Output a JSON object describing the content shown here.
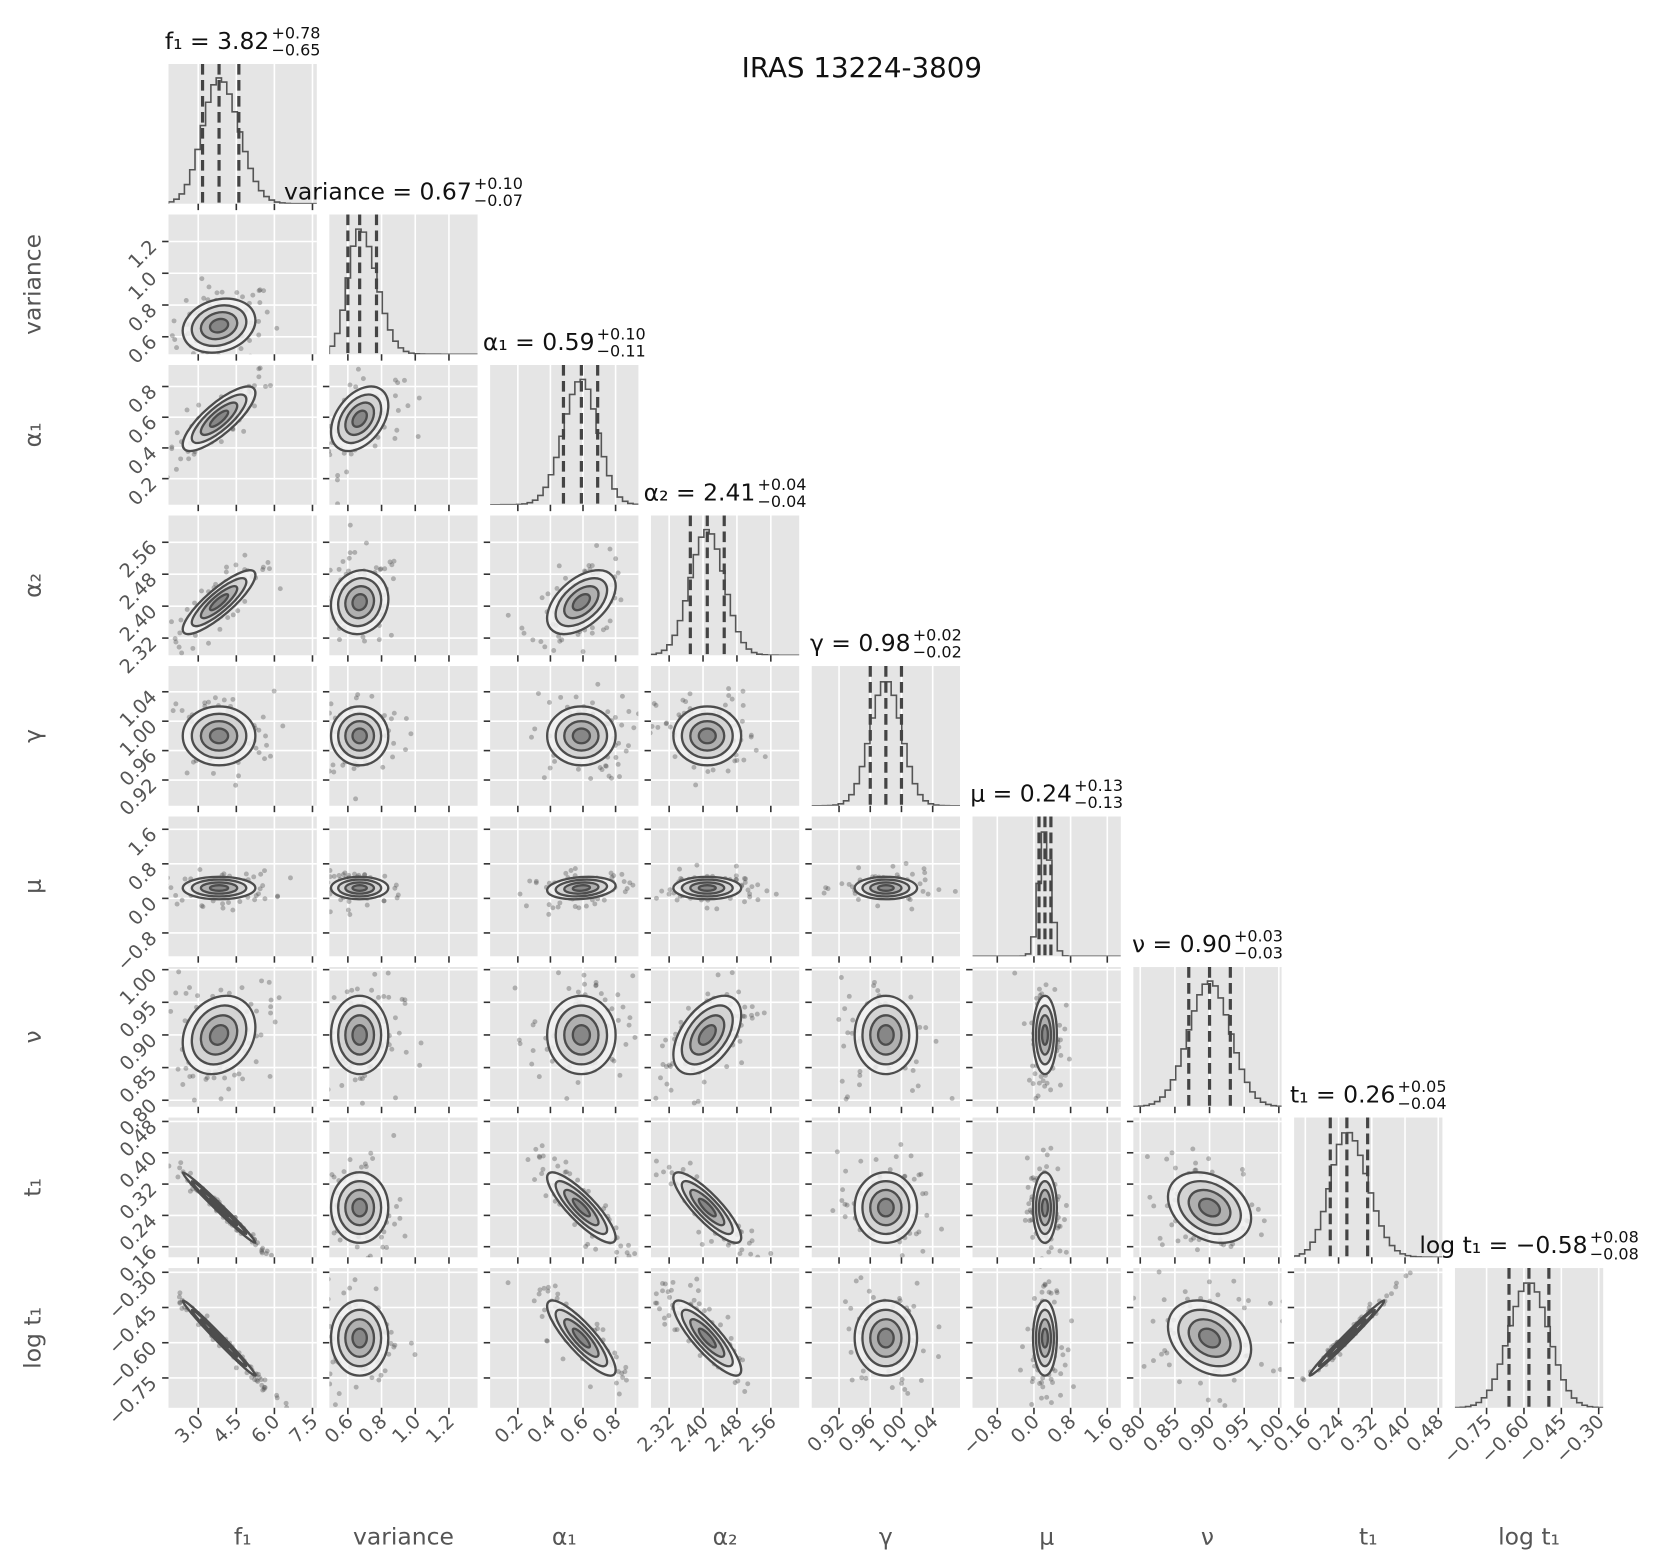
{
  "chart_data": {
    "type": "corner",
    "title": "IRAS 13224-3809",
    "grid": true,
    "color": "#4d4d4d",
    "panel_color": "#e5e5e5",
    "parameters": [
      {
        "label": "f₁",
        "title": "f₁ = 3.82",
        "err_labels": [
          "+0.78",
          "−0.65"
        ],
        "median": 3.82,
        "errors": [
          0.78,
          0.65
        ],
        "lim": [
          1.83,
          7.67
        ],
        "ticks": [
          {
            "value": 3,
            "label": "3.0"
          },
          4.5,
          {
            "value": 6,
            "label": "6.0"
          },
          7.5
        ]
      },
      {
        "label": "variance",
        "title": "variance = 0.67",
        "err_labels": [
          "+0.10",
          "−0.07"
        ],
        "median": 0.67,
        "errors": [
          0.1,
          0.07
        ],
        "lim": [
          0.49,
          1.37
        ],
        "ticks": [
          0.6,
          0.8,
          {
            "value": 1,
            "label": "1.0"
          },
          1.2
        ]
      },
      {
        "label": "α₁",
        "title": "α₁ = 0.59",
        "err_labels": [
          "+0.10",
          "−0.11"
        ],
        "median": 0.59,
        "errors": [
          0.1,
          0.11
        ],
        "lim": [
          0.03,
          0.94
        ],
        "ticks": [
          0.2,
          0.4,
          0.6,
          0.8
        ]
      },
      {
        "label": "α₂",
        "title": "α₂ = 2.41",
        "err_labels": [
          "+0.04",
          "−0.04"
        ],
        "median": 2.41,
        "errors": [
          0.04,
          0.04
        ],
        "lim": [
          2.277,
          2.627
        ],
        "ticks": [
          2.32,
          {
            "value": 2.4,
            "label": "2.40"
          },
          2.48,
          2.56
        ]
      },
      {
        "label": "γ",
        "title": "γ = 0.98",
        "err_labels": [
          "+0.02",
          "−0.02"
        ],
        "median": 0.98,
        "errors": [
          0.02,
          0.02
        ],
        "lim": [
          0.885,
          1.075
        ],
        "ticks": [
          0.92,
          0.96,
          {
            "value": 1,
            "label": "1.00"
          },
          1.04
        ]
      },
      {
        "label": "μ",
        "title": "μ = 0.24",
        "err_labels": [
          "+0.13",
          "−0.13"
        ],
        "median": 0.24,
        "errors": [
          0.13,
          0.13
        ],
        "lim": [
          -1.34,
          1.895
        ],
        "ticks": [
          {
            "value": -0.8,
            "label": "−0.8"
          },
          {
            "value": 0,
            "label": "0.0"
          },
          0.8,
          1.6
        ]
      },
      {
        "label": "ν",
        "title": "ν = 0.90",
        "err_labels": [
          "+0.03",
          "−0.03"
        ],
        "median": 0.9,
        "errors": [
          0.03,
          0.03
        ],
        "lim": [
          0.79,
          1.004
        ],
        "ticks": [
          {
            "value": 0.8,
            "label": "0.80"
          },
          0.85,
          {
            "value": 0.9,
            "label": "0.90"
          },
          0.95,
          {
            "value": 1,
            "label": "1.00"
          }
        ]
      },
      {
        "label": "t₁",
        "title": "t₁ = 0.26",
        "err_labels": [
          "+0.05",
          "−0.04"
        ],
        "median": 0.26,
        "errors": [
          0.05,
          0.04
        ],
        "lim": [
          0.133,
          0.49
        ],
        "ticks": [
          0.16,
          0.24,
          0.32,
          {
            "value": 0.4,
            "label": "0.40"
          },
          0.48
        ]
      },
      {
        "label": "log t₁",
        "title": "log t₁ = −0.58",
        "err_labels": [
          "+0.08",
          "−0.08"
        ],
        "median": -0.58,
        "errors": [
          0.08,
          0.08
        ],
        "lim": [
          -0.877,
          -0.282
        ],
        "ticks": [
          {
            "value": -0.75,
            "label": "−0.75"
          },
          {
            "value": -0.6,
            "label": "−0.60"
          },
          {
            "value": -0.45,
            "label": "−0.45"
          },
          {
            "value": -0.3,
            "label": "−0.30"
          }
        ]
      }
    ],
    "correlations": [
      [
        0.2
      ],
      [
        0.8,
        0.4
      ],
      [
        0.85,
        0.1,
        0.5
      ],
      [
        0,
        0,
        0,
        0
      ],
      [
        0,
        0,
        0.2,
        0,
        0
      ],
      [
        0.2,
        0,
        0,
        0.5,
        0,
        0
      ],
      [
        -0.99,
        0,
        -0.85,
        -0.85,
        0,
        0,
        -0.3
      ],
      [
        -0.99,
        0,
        -0.85,
        -0.85,
        0,
        0,
        -0.3,
        0.99
      ]
    ]
  }
}
